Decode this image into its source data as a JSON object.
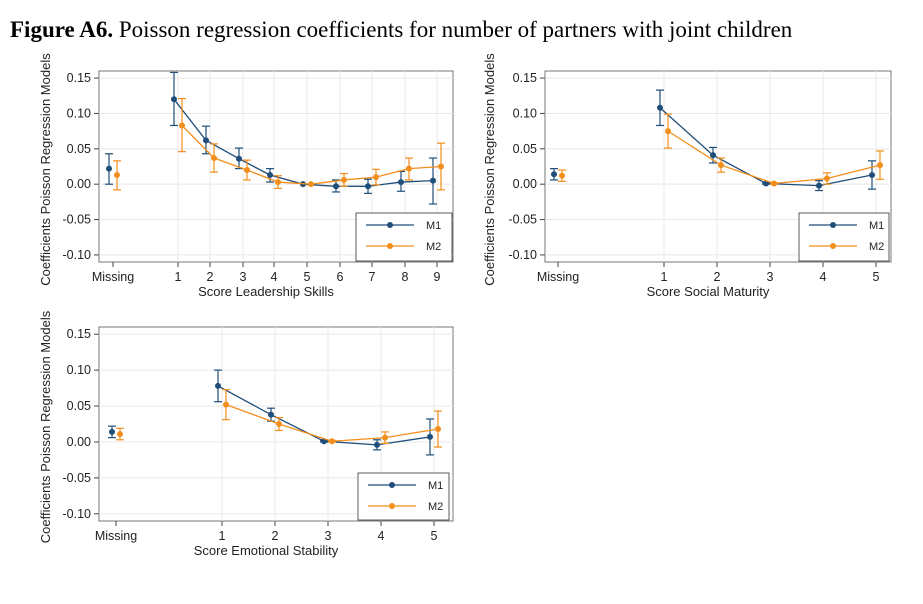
{
  "figure": {
    "title_bold": "Figure A6.",
    "title_rest": " Poisson regression coefficients for number of partners with joint children"
  },
  "colors": {
    "M1": "#1f4e79",
    "M2": "#f28e1c",
    "grid": "#e8e8e8"
  },
  "chart_data": [
    {
      "type": "scatter",
      "xlabel": "Score Leadership Skills",
      "ylabel": "Coefficients Poisson Regression Models",
      "ylim": [
        -0.11,
        0.16
      ],
      "yticks": [
        "0.15",
        "0.10",
        "0.05",
        "0.00",
        "-0.05",
        "-0.10"
      ],
      "categories": [
        "Missing",
        "1",
        "2",
        "3",
        "4",
        "5",
        "6",
        "7",
        "8",
        "9"
      ],
      "grid": true,
      "legend_position": "bottom-right",
      "series": [
        {
          "name": "M1",
          "values": [
            0.022,
            0.12,
            0.062,
            0.036,
            0.013,
            0.0,
            -0.003,
            -0.003,
            0.003,
            0.005
          ],
          "ci_low": [
            0.0,
            0.083,
            0.043,
            0.022,
            0.003,
            0.0,
            -0.011,
            -0.013,
            -0.01,
            -0.028
          ],
          "ci_high": [
            0.043,
            0.158,
            0.082,
            0.051,
            0.022,
            0.0,
            0.006,
            0.007,
            0.018,
            0.037
          ]
        },
        {
          "name": "M2",
          "values": [
            0.013,
            0.083,
            0.037,
            0.02,
            0.003,
            0.0,
            0.006,
            0.01,
            0.022,
            0.025
          ],
          "ci_low": [
            -0.008,
            0.046,
            0.017,
            0.006,
            -0.006,
            0.0,
            -0.003,
            -0.001,
            0.006,
            -0.008
          ],
          "ci_high": [
            0.033,
            0.121,
            0.057,
            0.034,
            0.012,
            0.0,
            0.015,
            0.021,
            0.037,
            0.058
          ]
        }
      ]
    },
    {
      "type": "scatter",
      "xlabel": "Score Social Maturity",
      "ylabel": "Coefficients Poisson Regression Models",
      "ylim": [
        -0.11,
        0.16
      ],
      "yticks": [
        "0.15",
        "0.10",
        "0.05",
        "0.00",
        "-0.05",
        "-0.10"
      ],
      "categories": [
        "Missing",
        "1",
        "2",
        "3",
        "4",
        "5"
      ],
      "grid": true,
      "legend_position": "bottom-right",
      "series": [
        {
          "name": "M1",
          "values": [
            0.014,
            0.108,
            0.041,
            0.001,
            -0.002,
            0.013
          ],
          "ci_low": [
            0.006,
            0.083,
            0.03,
            0.0,
            -0.009,
            -0.007
          ],
          "ci_high": [
            0.022,
            0.133,
            0.052,
            0.002,
            0.005,
            0.033
          ]
        },
        {
          "name": "M2",
          "values": [
            0.012,
            0.075,
            0.027,
            0.001,
            0.008,
            0.027
          ],
          "ci_low": [
            0.004,
            0.051,
            0.017,
            0.0,
            0.0,
            0.007
          ],
          "ci_high": [
            0.02,
            0.099,
            0.037,
            0.002,
            0.016,
            0.047
          ]
        }
      ]
    },
    {
      "type": "scatter",
      "xlabel": "Score Emotional Stability",
      "ylabel": "Coefficients Poisson Regression Models",
      "ylim": [
        -0.11,
        0.16
      ],
      "yticks": [
        "0.15",
        "0.10",
        "0.05",
        "0.00",
        "-0.05",
        "-0.10"
      ],
      "categories": [
        "Missing",
        "1",
        "2",
        "3",
        "4",
        "5"
      ],
      "grid": true,
      "legend_position": "bottom-right",
      "series": [
        {
          "name": "M1",
          "values": [
            0.014,
            0.078,
            0.038,
            0.001,
            -0.004,
            0.007
          ],
          "ci_low": [
            0.006,
            0.056,
            0.029,
            0.0,
            -0.011,
            -0.018
          ],
          "ci_high": [
            0.022,
            0.1,
            0.047,
            0.002,
            0.003,
            0.032
          ]
        },
        {
          "name": "M2",
          "values": [
            0.011,
            0.052,
            0.025,
            0.001,
            0.006,
            0.018
          ],
          "ci_low": [
            0.003,
            0.031,
            0.016,
            0.0,
            -0.002,
            -0.007
          ],
          "ci_high": [
            0.019,
            0.073,
            0.034,
            0.002,
            0.014,
            0.043
          ]
        }
      ]
    }
  ]
}
